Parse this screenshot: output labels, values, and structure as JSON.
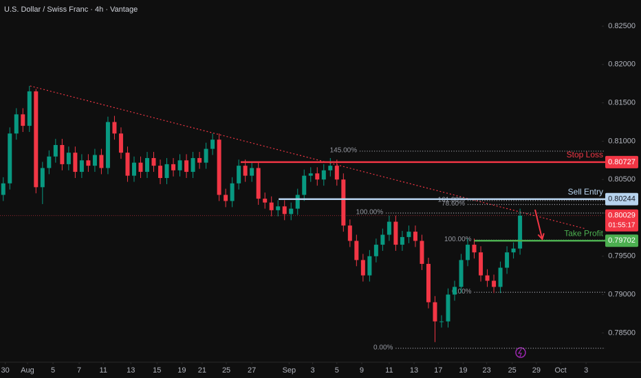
{
  "chart_data": {
    "type": "candlestick",
    "title": "U.S. Dollar / Swiss Franc · 4h · Vantage",
    "up_color": "#089981",
    "down_color": "#f23645",
    "open": [
      0.803,
      0.8045,
      0.811,
      0.8135,
      0.812,
      0.8165,
      0.804,
      0.8065,
      0.808,
      0.8095,
      0.807,
      0.8085,
      0.806,
      0.8075,
      0.8068,
      0.8082,
      0.8065,
      0.8125,
      0.811,
      0.8085,
      0.8055,
      0.8072,
      0.806,
      0.8078,
      0.8068,
      0.8052,
      0.807,
      0.8062,
      0.8075,
      0.806,
      0.8078,
      0.8072,
      0.809,
      0.8102,
      0.803,
      0.8022,
      0.8045,
      0.8068,
      0.8055,
      0.8065,
      0.8025,
      0.802,
      0.801,
      0.8015,
      0.8005,
      0.8012,
      0.803,
      0.8055,
      0.8058,
      0.805,
      0.8062,
      0.8068,
      0.805,
      0.799,
      0.797,
      0.7945,
      0.7925,
      0.795,
      0.7965,
      0.7978,
      0.7995,
      0.7965,
      0.7975,
      0.7982,
      0.797,
      0.794,
      0.789,
      0.7865,
      0.7865,
      0.79,
      0.791,
      0.7945,
      0.7965,
      0.7955,
      0.7925,
      0.7918,
      0.791,
      0.7935,
      0.7955,
      0.796
    ],
    "high": [
      0.8053,
      0.8118,
      0.8143,
      0.8143,
      0.8172,
      0.8168,
      0.8073,
      0.8088,
      0.8103,
      0.8103,
      0.8093,
      0.8093,
      0.8083,
      0.8083,
      0.809,
      0.809,
      0.8132,
      0.8133,
      0.8118,
      0.8093,
      0.808,
      0.808,
      0.8086,
      0.8086,
      0.8076,
      0.8078,
      0.8078,
      0.8083,
      0.8083,
      0.8086,
      0.8086,
      0.8098,
      0.811,
      0.811,
      0.8038,
      0.8053,
      0.8076,
      0.8076,
      0.8073,
      0.8073,
      0.8033,
      0.8028,
      0.8023,
      0.8023,
      0.802,
      0.8038,
      0.8063,
      0.8066,
      0.8066,
      0.807,
      0.8078,
      0.8076,
      0.8058,
      0.7998,
      0.7978,
      0.7953,
      0.7958,
      0.7973,
      0.7986,
      0.8003,
      0.8003,
      0.7983,
      0.799,
      0.799,
      0.7978,
      0.7948,
      0.7898,
      0.7873,
      0.7908,
      0.7918,
      0.7953,
      0.7973,
      0.7973,
      0.7963,
      0.7933,
      0.7926,
      0.7943,
      0.7963,
      0.7968,
      0.8012
    ],
    "low": [
      0.8022,
      0.8037,
      0.8102,
      0.8112,
      0.8112,
      0.8032,
      0.8018,
      0.8057,
      0.8072,
      0.8062,
      0.8062,
      0.8052,
      0.8052,
      0.806,
      0.806,
      0.8057,
      0.8057,
      0.8102,
      0.8077,
      0.8047,
      0.8047,
      0.8052,
      0.8052,
      0.806,
      0.8044,
      0.8044,
      0.8054,
      0.8054,
      0.8052,
      0.8052,
      0.8064,
      0.8064,
      0.8082,
      0.8022,
      0.8014,
      0.8014,
      0.8037,
      0.8047,
      0.8047,
      0.8017,
      0.8012,
      0.8002,
      0.8002,
      0.7997,
      0.7997,
      0.8004,
      0.8022,
      0.8047,
      0.8042,
      0.8042,
      0.8054,
      0.8042,
      0.7982,
      0.7962,
      0.7937,
      0.7917,
      0.7917,
      0.7942,
      0.7957,
      0.797,
      0.7957,
      0.7957,
      0.7967,
      0.7962,
      0.7932,
      0.7882,
      0.7838,
      0.7857,
      0.7857,
      0.7892,
      0.7902,
      0.7937,
      0.7947,
      0.7917,
      0.791,
      0.7902,
      0.7902,
      0.7927,
      0.7947,
      0.7952
    ],
    "close": [
      0.8045,
      0.811,
      0.8135,
      0.812,
      0.8165,
      0.804,
      0.8065,
      0.808,
      0.8095,
      0.807,
      0.8085,
      0.806,
      0.8075,
      0.8068,
      0.8082,
      0.8065,
      0.8125,
      0.811,
      0.8085,
      0.8055,
      0.8072,
      0.806,
      0.8078,
      0.8068,
      0.8052,
      0.807,
      0.8062,
      0.8075,
      0.806,
      0.8078,
      0.8072,
      0.809,
      0.8102,
      0.803,
      0.8022,
      0.8045,
      0.8068,
      0.8055,
      0.8065,
      0.8025,
      0.802,
      0.801,
      0.8015,
      0.8005,
      0.8012,
      0.803,
      0.8055,
      0.8058,
      0.805,
      0.8062,
      0.8068,
      0.805,
      0.799,
      0.797,
      0.7945,
      0.7925,
      0.795,
      0.7965,
      0.7978,
      0.7995,
      0.7965,
      0.7975,
      0.7982,
      0.797,
      0.794,
      0.789,
      0.7865,
      0.7865,
      0.79,
      0.791,
      0.7945,
      0.7965,
      0.7955,
      0.7925,
      0.7918,
      0.791,
      0.7935,
      0.7955,
      0.796,
      0.80029
    ],
    "xlim": [
      -0.5,
      91.5
    ],
    "xticks": [
      {
        "value": 0.3,
        "label": "30"
      },
      {
        "value": 3.7,
        "label": "Aug"
      },
      {
        "value": 7.6,
        "label": "5"
      },
      {
        "value": 11.6,
        "label": "7"
      },
      {
        "value": 15.3,
        "label": "11"
      },
      {
        "value": 19.5,
        "label": "13"
      },
      {
        "value": 23.5,
        "label": "15"
      },
      {
        "value": 27.3,
        "label": "19"
      },
      {
        "value": 30.4,
        "label": "21"
      },
      {
        "value": 34.1,
        "label": "25"
      },
      {
        "value": 38,
        "label": "27"
      },
      {
        "value": 43.7,
        "label": "Sep"
      },
      {
        "value": 47.3,
        "label": "3"
      },
      {
        "value": 51,
        "label": "5"
      },
      {
        "value": 54.8,
        "label": "9"
      },
      {
        "value": 59,
        "label": "11"
      },
      {
        "value": 62.8,
        "label": "13"
      },
      {
        "value": 66.5,
        "label": "17"
      },
      {
        "value": 70.3,
        "label": "19"
      },
      {
        "value": 73.9,
        "label": "23"
      },
      {
        "value": 77.8,
        "label": "25"
      },
      {
        "value": 81.5,
        "label": "29"
      },
      {
        "value": 85.2,
        "label": "Oct"
      },
      {
        "value": 89.1,
        "label": "3"
      }
    ],
    "ylim": [
      0.78118,
      0.82841
    ],
    "yticks": [
      {
        "value": 0.825,
        "label": "0.82500"
      },
      {
        "value": 0.82,
        "label": "0.82000"
      },
      {
        "value": 0.815,
        "label": "0.81500"
      },
      {
        "value": 0.81,
        "label": "0.81000"
      },
      {
        "value": 0.805,
        "label": "0.80500"
      },
      {
        "value": 0.795,
        "label": "0.79500"
      },
      {
        "value": 0.79,
        "label": "0.79000"
      },
      {
        "value": 0.785,
        "label": "0.78500"
      }
    ],
    "levels": [
      {
        "name": "Stop Loss",
        "value": 0.80727,
        "color": "#f23645",
        "start": 36.3
      },
      {
        "name": "Sell Entry",
        "value": 0.80244,
        "color": "#b7d3ee",
        "start": 42.1
      },
      {
        "name": "Take Profit",
        "value": 0.79702,
        "color": "#4caf50",
        "start": 72
      }
    ],
    "current_price": {
      "value": 0.80029,
      "countdown": "01:55:17",
      "color": "#f23645"
    },
    "fib_levels": [
      {
        "label": "145.00%",
        "price": 0.8087,
        "start": 54.5
      },
      {
        "label": "161.80%",
        "price": 0.80225,
        "start": 71
      },
      {
        "label": "78.60%",
        "price": 0.80175,
        "start": 71
      },
      {
        "label": "100.00%",
        "price": 0.80063,
        "start": 58.5
      },
      {
        "label": "100.00%",
        "price": 0.7971,
        "start": 72
      },
      {
        "label": "0.00%",
        "price": 0.7903,
        "start": 72
      },
      {
        "label": "0.00%",
        "price": 0.783,
        "start": 60
      }
    ],
    "trendline": {
      "color": "#f23645",
      "points": [
        [
          4.1,
          0.8172
        ],
        [
          88.9,
          0.7986
        ]
      ]
    },
    "arrow": {
      "color": "#f23645",
      "from": [
        81.3,
        0.80107
      ],
      "to": [
        82.4,
        0.79722
      ]
    }
  }
}
